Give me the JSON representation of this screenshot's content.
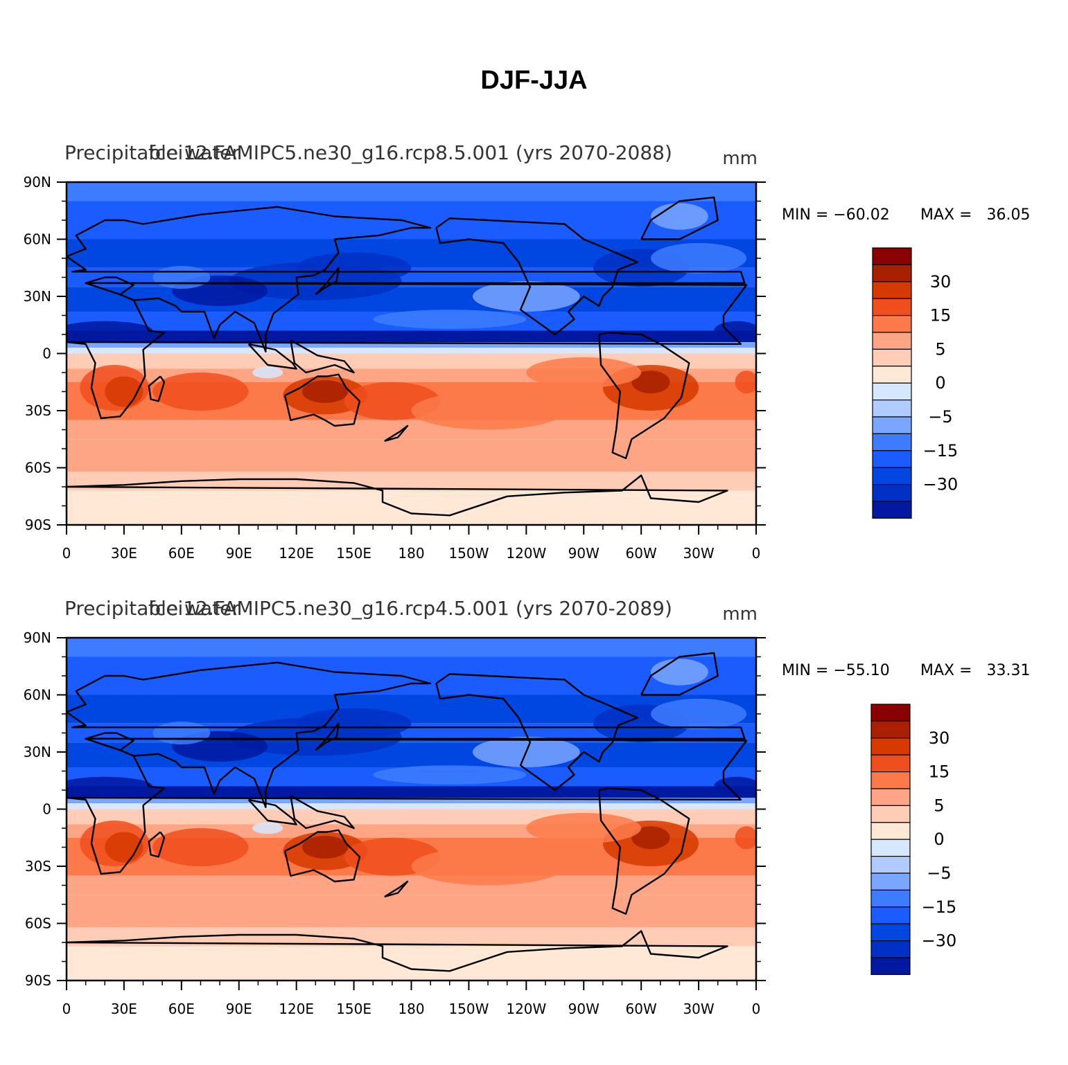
{
  "figure": {
    "title": "DJF-JJA"
  },
  "colors": {
    "scale": [
      "#00008b",
      "#0019a0",
      "#0031c4",
      "#0046e0",
      "#1a5cff",
      "#3d7cff",
      "#7aa6ff",
      "#b0cbff",
      "#d6e8ff",
      "#ffe9d6",
      "#ffcdb5",
      "#fda584",
      "#fc7a4a",
      "#f04e1d",
      "#d63a00",
      "#a82000",
      "#8b0000"
    ]
  },
  "panels": [
    {
      "id": "rcp85",
      "left_header": "Precipitable water",
      "center_header": "fcei12.FAMIPC5.ne30_g16.rcp8.5.001 (yrs 2070-2088)",
      "units": "mm",
      "min_label": "MIN = −60.02",
      "max_label": "MAX =   36.05",
      "colorbar_labels": [
        "30",
        "15",
        "5",
        "0",
        "−5",
        "−15",
        "−30"
      ]
    },
    {
      "id": "rcp45",
      "left_header": "Precipitable water",
      "center_header": "fcei12.FAMIPC5.ne30_g16.rcp4.5.001 (yrs 2070-2089)",
      "units": "mm",
      "min_label": "MIN = −55.10",
      "max_label": "MAX =   33.31",
      "colorbar_labels": [
        "30",
        "15",
        "5",
        "0",
        "−5",
        "−15",
        "−30"
      ]
    }
  ],
  "axes": {
    "lat_labels": [
      "90N",
      "60N",
      "30N",
      "0",
      "30S",
      "60S",
      "90S"
    ],
    "lon_labels": [
      "0",
      "30E",
      "60E",
      "90E",
      "120E",
      "150E",
      "180",
      "150W",
      "120W",
      "90W",
      "60W",
      "30W",
      "0"
    ]
  }
}
